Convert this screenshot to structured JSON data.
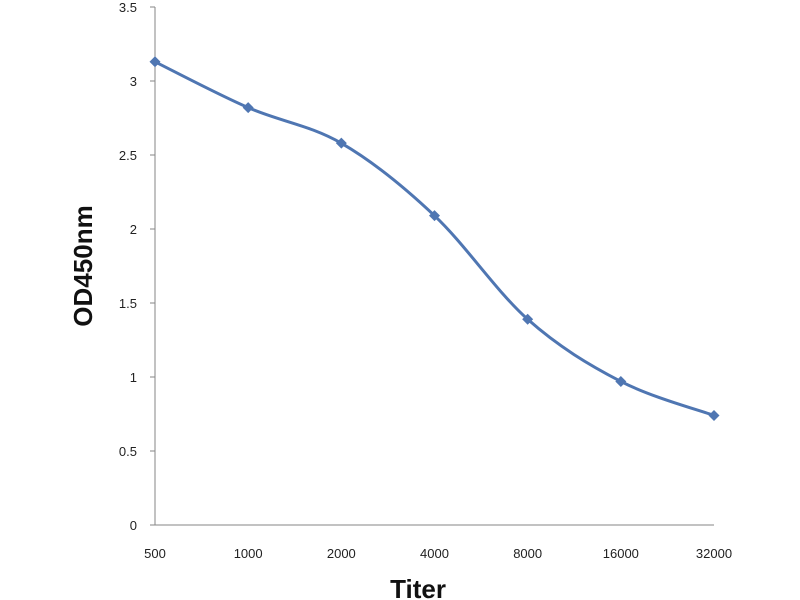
{
  "chart_data": {
    "type": "line",
    "title": "",
    "xlabel": "Titer",
    "ylabel": "OD450nm",
    "categories": [
      "500",
      "1000",
      "2000",
      "4000",
      "8000",
      "16000",
      "32000"
    ],
    "series": [
      {
        "values": [
          3.13,
          2.82,
          2.58,
          2.09,
          1.39,
          0.97,
          0.74
        ]
      }
    ],
    "ylim": [
      0,
      3.5
    ],
    "yticks": [
      "0",
      "0.5",
      "1",
      "1.5",
      "2",
      "2.5",
      "3",
      "3.5"
    ],
    "grid": false,
    "legend": "none",
    "smooth": true,
    "line_color": "#4F76B2",
    "marker": "diamond"
  }
}
